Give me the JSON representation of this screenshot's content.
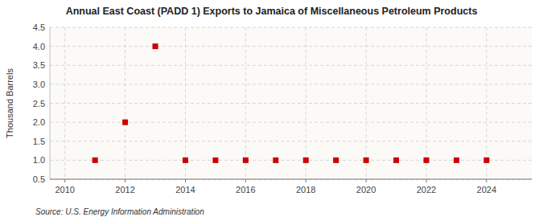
{
  "chart_data": {
    "type": "scatter",
    "title": "Annual East Coast (PADD 1) Exports to Jamaica of Miscellaneous Petroleum Products",
    "y_label": "Thousand Barrels",
    "annotations": [
      "Source: U.S. Energy Information Administration"
    ],
    "x": [
      2011,
      2012,
      2013,
      2014,
      2015,
      2016,
      2017,
      2018,
      2019,
      2020,
      2021,
      2022,
      2023,
      2024
    ],
    "values": [
      1,
      2,
      4,
      1,
      1,
      1,
      1,
      1,
      1,
      1,
      1,
      1,
      1,
      1
    ],
    "color": "#CC0000",
    "marker": "square",
    "xlim": [
      2009.5,
      2025.5
    ],
    "ylim": [
      0.5,
      4.5
    ],
    "xticks": [
      2010,
      2012,
      2014,
      2016,
      2018,
      2020,
      2022,
      2024
    ],
    "yticks": [
      0.5,
      {
        "value": 1.0,
        "label": "1.0"
      },
      1.5,
      {
        "value": 2.0,
        "label": "2.0"
      },
      2.5,
      {
        "value": 3.0,
        "label": "3.0"
      },
      3.5,
      {
        "value": 4.0,
        "label": "4.0"
      },
      4.5
    ],
    "grid": true
  }
}
